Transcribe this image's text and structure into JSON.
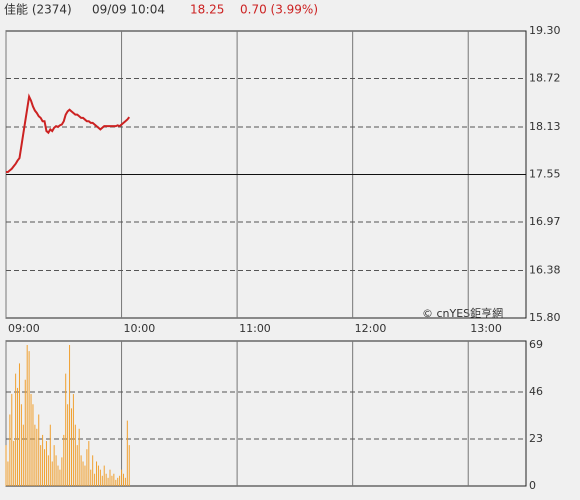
{
  "header": {
    "name": "佳能 (2374)",
    "time": "09/09 10:04",
    "price": 18.25,
    "change": "0.70 (3.99%)"
  },
  "chart_data": [
    {
      "type": "line",
      "annotation": "© cnYES鉅亨網",
      "color": "#cc2222",
      "xlim": [
        "09:00",
        "13:30"
      ],
      "xticks": [
        "09:00",
        "10:00",
        "11:00",
        "12:00",
        "13:00"
      ],
      "ylim": [
        15.8,
        19.3
      ],
      "yticks": [
        {
          "value": 19.3,
          "label": "19.30"
        },
        18.72,
        18.13,
        17.55,
        16.97,
        16.38,
        {
          "value": 15.8,
          "label": "15.80"
        }
      ],
      "reference_line": 17.55,
      "grid": true,
      "x": [
        "09:00",
        "09:01",
        "09:02",
        "09:03",
        "09:04",
        "09:05",
        "09:06",
        "09:07",
        "09:08",
        "09:09",
        "09:10",
        "09:11",
        "09:12",
        "09:13",
        "09:14",
        "09:15",
        "09:16",
        "09:17",
        "09:18",
        "09:19",
        "09:20",
        "09:21",
        "09:22",
        "09:23",
        "09:24",
        "09:25",
        "09:26",
        "09:27",
        "09:28",
        "09:29",
        "09:30",
        "09:31",
        "09:32",
        "09:33",
        "09:34",
        "09:35",
        "09:36",
        "09:37",
        "09:38",
        "09:39",
        "09:40",
        "09:41",
        "09:42",
        "09:43",
        "09:44",
        "09:45",
        "09:46",
        "09:47",
        "09:48",
        "09:49",
        "09:50",
        "09:51",
        "09:52",
        "09:53",
        "09:54",
        "09:55",
        "09:56",
        "09:57",
        "09:58",
        "09:59",
        "10:00",
        "10:01",
        "10:02",
        "10:03",
        "10:04"
      ],
      "values": [
        17.58,
        17.58,
        17.6,
        17.62,
        17.65,
        17.68,
        17.72,
        17.75,
        17.9,
        18.05,
        18.2,
        18.35,
        18.5,
        18.45,
        18.38,
        18.33,
        18.3,
        18.26,
        18.24,
        18.2,
        18.2,
        18.08,
        18.06,
        18.1,
        18.08,
        18.12,
        18.14,
        18.13,
        18.15,
        18.16,
        18.2,
        18.28,
        18.32,
        18.34,
        18.32,
        18.3,
        18.28,
        18.28,
        18.26,
        18.24,
        18.24,
        18.22,
        18.2,
        18.2,
        18.18,
        18.18,
        18.16,
        18.14,
        18.12,
        18.1,
        18.12,
        18.14,
        18.14,
        18.14,
        18.14,
        18.14,
        18.14,
        18.14,
        18.15,
        18.14,
        18.16,
        18.18,
        18.2,
        18.22,
        18.25
      ]
    },
    {
      "type": "bar",
      "color": "#f0a030",
      "xlim": [
        "09:00",
        "13:30"
      ],
      "xticks": [
        "09:00",
        "10:00",
        "11:00",
        "12:00",
        "13:00"
      ],
      "ylim": [
        0,
        69
      ],
      "yticks": [
        69,
        46,
        23,
        0
      ],
      "grid": true,
      "x": [
        "09:00",
        "09:01",
        "09:02",
        "09:03",
        "09:04",
        "09:05",
        "09:06",
        "09:07",
        "09:08",
        "09:09",
        "09:10",
        "09:11",
        "09:12",
        "09:13",
        "09:14",
        "09:15",
        "09:16",
        "09:17",
        "09:18",
        "09:19",
        "09:20",
        "09:21",
        "09:22",
        "09:23",
        "09:24",
        "09:25",
        "09:26",
        "09:27",
        "09:28",
        "09:29",
        "09:30",
        "09:31",
        "09:32",
        "09:33",
        "09:34",
        "09:35",
        "09:36",
        "09:37",
        "09:38",
        "09:39",
        "09:40",
        "09:41",
        "09:42",
        "09:43",
        "09:44",
        "09:45",
        "09:46",
        "09:47",
        "09:48",
        "09:49",
        "09:50",
        "09:51",
        "09:52",
        "09:53",
        "09:54",
        "09:55",
        "09:56",
        "09:57",
        "09:58",
        "09:59",
        "10:00",
        "10:01",
        "10:02",
        "10:03",
        "10:04"
      ],
      "values": [
        20,
        12,
        35,
        45,
        22,
        55,
        48,
        60,
        40,
        30,
        52,
        69,
        66,
        45,
        40,
        30,
        28,
        35,
        20,
        25,
        18,
        22,
        15,
        30,
        12,
        20,
        15,
        10,
        8,
        14,
        25,
        55,
        40,
        69,
        38,
        45,
        30,
        20,
        28,
        15,
        12,
        10,
        18,
        22,
        8,
        15,
        6,
        12,
        10,
        8,
        5,
        10,
        6,
        4,
        8,
        5,
        6,
        3,
        4,
        5,
        8,
        6,
        4,
        32,
        20
      ]
    }
  ]
}
